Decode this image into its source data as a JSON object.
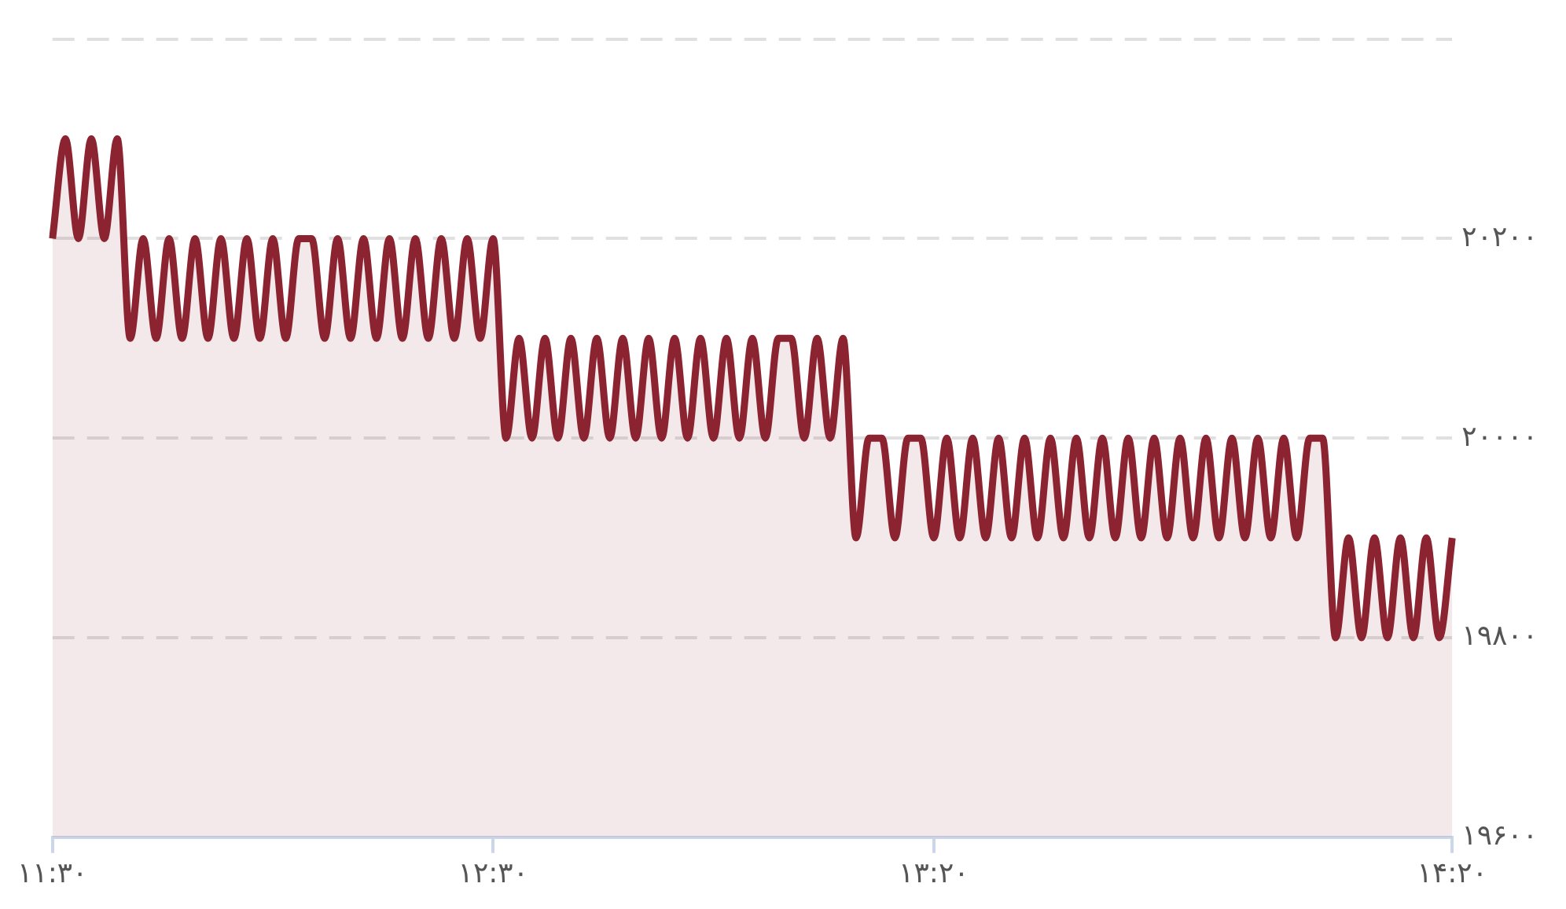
{
  "chart_data": {
    "type": "area",
    "categories": [
      "۱۱:۳۰",
      null,
      null,
      null,
      null,
      null,
      null,
      null,
      null,
      null,
      null,
      null,
      null,
      null,
      null,
      null,
      null,
      null,
      null,
      null,
      null,
      null,
      null,
      null,
      null,
      null,
      null,
      null,
      null,
      null,
      null,
      null,
      null,
      null,
      "۱۲:۳۰",
      null,
      null,
      null,
      null,
      null,
      null,
      null,
      null,
      null,
      null,
      null,
      null,
      null,
      null,
      null,
      null,
      null,
      null,
      null,
      null,
      null,
      null,
      null,
      null,
      null,
      null,
      null,
      null,
      null,
      null,
      null,
      null,
      null,
      "۱۳:۲۰",
      null,
      null,
      null,
      null,
      null,
      null,
      null,
      null,
      null,
      null,
      null,
      null,
      null,
      null,
      null,
      null,
      null,
      null,
      null,
      null,
      null,
      null,
      null,
      null,
      null,
      null,
      null,
      null,
      null,
      null,
      null,
      null,
      null,
      null,
      null,
      null,
      null,
      null,
      null,
      "۱۴:۲۰"
    ],
    "series": [
      {
        "color": "#8b2331",
        "values": [
          20200,
          20300,
          20200,
          20300,
          20200,
          20300,
          20100,
          20200,
          20100,
          20200,
          20100,
          20200,
          20100,
          20200,
          20100,
          20200,
          20100,
          20200,
          20100,
          20200,
          20200,
          20100,
          20200,
          20100,
          20200,
          20100,
          20200,
          20100,
          20200,
          20100,
          20200,
          20100,
          20200,
          20100,
          20200,
          20000,
          20100,
          20000,
          20100,
          20000,
          20100,
          20000,
          20100,
          20000,
          20100,
          20000,
          20100,
          20000,
          20100,
          20000,
          20100,
          20000,
          20100,
          20000,
          20100,
          20000,
          20100,
          20100,
          20000,
          20100,
          20000,
          20100,
          19900,
          20000,
          20000,
          19900,
          20000,
          20000,
          19900,
          20000,
          19900,
          20000,
          19900,
          20000,
          19900,
          20000,
          19900,
          20000,
          19900,
          20000,
          19900,
          20000,
          19900,
          20000,
          19900,
          20000,
          19900,
          20000,
          19900,
          20000,
          19900,
          20000,
          19900,
          20000,
          19900,
          20000,
          19900,
          20000,
          20000,
          19800,
          19900,
          19800,
          19900,
          19800,
          19900,
          19800,
          19900,
          19800,
          19900
        ]
      }
    ],
    "ylim": [
      19600,
      20400
    ],
    "yticks": [
      {
        "value": 19600,
        "label": "۱۹۶۰۰"
      },
      {
        "value": 19800,
        "label": "۱۹۸۰۰"
      },
      {
        "value": 20000,
        "label": "۲۰۰۰۰"
      },
      {
        "value": 20200,
        "label": "۲۰۲۰۰"
      },
      {
        "value": 20400,
        "label": null
      }
    ],
    "grid": "y",
    "legend": false
  }
}
